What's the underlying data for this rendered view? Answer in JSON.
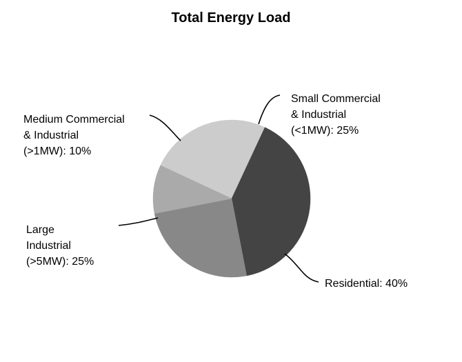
{
  "chart_data": {
    "type": "pie",
    "title": "Total Energy Load",
    "slices": [
      {
        "label_lines": [
          "Small Commercial",
          "& Industrial",
          "(<1MW): 25%"
        ],
        "value": 25,
        "color": "#cccccc"
      },
      {
        "label_lines": [
          "Residential: 40%"
        ],
        "value": 40,
        "color": "#444444"
      },
      {
        "label_lines": [
          "Large",
          "Industrial",
          "(>5MW): 25%"
        ],
        "value": 25,
        "color": "#888888"
      },
      {
        "label_lines": [
          "Medium Commercial",
          "& Industrial",
          "(>1MW): 10%"
        ],
        "value": 10,
        "color": "#aaaaaa"
      }
    ],
    "legend": "none",
    "grid": false
  }
}
